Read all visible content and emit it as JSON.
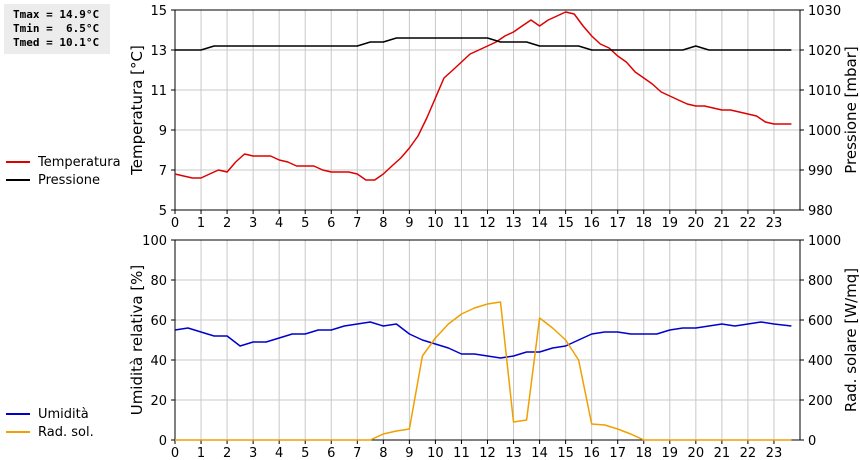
{
  "stats": {
    "tmax": "Tmax = 14.9°C",
    "tmin": "Tmin =  6.5°C",
    "tmed": "Tmed = 10.1°C"
  },
  "colors": {
    "temperatura": "#dd0000",
    "pressione": "#000000",
    "umidita": "#0000cc",
    "radsol": "#f0a000",
    "grid": "#c8c8c8"
  },
  "chart_data": [
    {
      "type": "line",
      "xlim": [
        0,
        24
      ],
      "x_ticks": [
        "0",
        "1",
        "2",
        "3",
        "4",
        "5",
        "6",
        "7",
        "8",
        "9",
        "10",
        "11",
        "12",
        "13",
        "14",
        "15",
        "16",
        "17",
        "18",
        "19",
        "20",
        "21",
        "22",
        "23"
      ],
      "grid": true,
      "ylabel": "Temperatura [°C]",
      "ylim": [
        5,
        15
      ],
      "y_ticks": [
        "5",
        "7",
        "9",
        "11",
        "13",
        "15"
      ],
      "y2label": "Pressione [mbar]",
      "y2lim": [
        980,
        1030
      ],
      "y2_ticks": [
        "980",
        "990",
        "1000",
        "1010",
        "1020",
        "1030"
      ],
      "legend_position": "left",
      "series": [
        {
          "name": "Temperatura",
          "axis": "left",
          "x": [
            0,
            0.33,
            0.67,
            1,
            1.33,
            1.67,
            2,
            2.33,
            2.67,
            3,
            3.33,
            3.67,
            4,
            4.33,
            4.67,
            5,
            5.33,
            5.67,
            6,
            6.33,
            6.67,
            7,
            7.33,
            7.67,
            8,
            8.33,
            8.67,
            9,
            9.33,
            9.67,
            10,
            10.33,
            10.67,
            11,
            11.33,
            11.67,
            12,
            12.33,
            12.67,
            13,
            13.33,
            13.67,
            14,
            14.33,
            14.67,
            15,
            15.33,
            15.67,
            16,
            16.33,
            16.67,
            17,
            17.33,
            17.67,
            18,
            18.33,
            18.67,
            19,
            19.33,
            19.67,
            20,
            20.33,
            20.67,
            21,
            21.33,
            21.67,
            22,
            22.33,
            22.67,
            23,
            23.33,
            23.67
          ],
          "y": [
            6.8,
            6.7,
            6.6,
            6.6,
            6.8,
            7.0,
            6.9,
            7.4,
            7.8,
            7.7,
            7.7,
            7.7,
            7.5,
            7.4,
            7.2,
            7.2,
            7.2,
            7.0,
            6.9,
            6.9,
            6.9,
            6.8,
            6.5,
            6.5,
            6.8,
            7.2,
            7.6,
            8.1,
            8.7,
            9.6,
            10.6,
            11.6,
            12.0,
            12.4,
            12.8,
            13.0,
            13.2,
            13.4,
            13.7,
            13.9,
            14.2,
            14.5,
            14.2,
            14.5,
            14.7,
            14.9,
            14.8,
            14.2,
            13.7,
            13.3,
            13.1,
            12.7,
            12.4,
            11.9,
            11.6,
            11.3,
            10.9,
            10.7,
            10.5,
            10.3,
            10.2,
            10.2,
            10.1,
            10.0,
            10.0,
            9.9,
            9.8,
            9.7,
            9.4,
            9.3,
            9.3,
            9.3
          ]
        },
        {
          "name": "Pressione",
          "axis": "right",
          "x": [
            0,
            1,
            1.5,
            2,
            3,
            4,
            5,
            6,
            7,
            7.5,
            8,
            8.5,
            9,
            10,
            11,
            12,
            12.5,
            13,
            13.5,
            14,
            14.5,
            15,
            15.5,
            16,
            17,
            18,
            19,
            19.5,
            20,
            20.5,
            21,
            22,
            23,
            23.67
          ],
          "y": [
            1020,
            1020,
            1021,
            1021,
            1021,
            1021,
            1021,
            1021,
            1021,
            1022,
            1022,
            1023,
            1023,
            1023,
            1023,
            1023,
            1022,
            1022,
            1022,
            1021,
            1021,
            1021,
            1021,
            1020,
            1020,
            1020,
            1020,
            1020,
            1021,
            1020,
            1020,
            1020,
            1020,
            1020
          ]
        }
      ]
    },
    {
      "type": "line",
      "xlim": [
        0,
        24
      ],
      "x_ticks": [
        "0",
        "1",
        "2",
        "3",
        "4",
        "5",
        "6",
        "7",
        "8",
        "9",
        "10",
        "11",
        "12",
        "13",
        "14",
        "15",
        "16",
        "17",
        "18",
        "19",
        "20",
        "21",
        "22",
        "23"
      ],
      "grid": true,
      "ylabel": "Umidità relativa [%]",
      "ylim": [
        0,
        100
      ],
      "y_ticks": [
        "0",
        "20",
        "40",
        "60",
        "80",
        "100"
      ],
      "y2label": "Rad. solare [W/mq]",
      "y2lim": [
        0,
        1000
      ],
      "y2_ticks": [
        "0",
        "200",
        "400",
        "600",
        "800",
        "1000"
      ],
      "legend_position": "left",
      "series": [
        {
          "name": "Umidità",
          "axis": "left",
          "x": [
            0,
            0.5,
            1,
            1.5,
            2,
            2.5,
            3,
            3.5,
            4,
            4.5,
            5,
            5.5,
            6,
            6.5,
            7,
            7.5,
            8,
            8.5,
            9,
            9.5,
            10,
            10.5,
            11,
            11.5,
            12,
            12.5,
            13,
            13.5,
            14,
            14.5,
            15,
            15.5,
            16,
            16.5,
            17,
            17.5,
            18,
            18.5,
            19,
            19.5,
            20,
            20.5,
            21,
            21.5,
            22,
            22.5,
            23,
            23.67
          ],
          "y": [
            55,
            56,
            54,
            52,
            52,
            47,
            49,
            49,
            51,
            53,
            53,
            55,
            55,
            57,
            58,
            59,
            57,
            58,
            53,
            50,
            48,
            46,
            43,
            43,
            42,
            41,
            42,
            44,
            44,
            46,
            47,
            50,
            53,
            54,
            54,
            53,
            53,
            53,
            55,
            56,
            56,
            57,
            58,
            57,
            58,
            59,
            58,
            57
          ]
        },
        {
          "name": "Rad. sol.",
          "axis": "right",
          "x": [
            0,
            7,
            7.5,
            8,
            8.5,
            9,
            9.5,
            10,
            10.5,
            11,
            11.5,
            12,
            12.5,
            13,
            13.5,
            14,
            14.5,
            15,
            15.5,
            16,
            16.5,
            17,
            17.5,
            18,
            18.5,
            19,
            20,
            21,
            22,
            23,
            23.67
          ],
          "y": [
            0,
            0,
            0,
            30,
            45,
            55,
            420,
            510,
            580,
            630,
            660,
            680,
            690,
            90,
            100,
            610,
            560,
            500,
            400,
            80,
            75,
            55,
            30,
            0,
            0,
            0,
            0,
            0,
            0,
            0,
            0
          ]
        }
      ]
    }
  ]
}
